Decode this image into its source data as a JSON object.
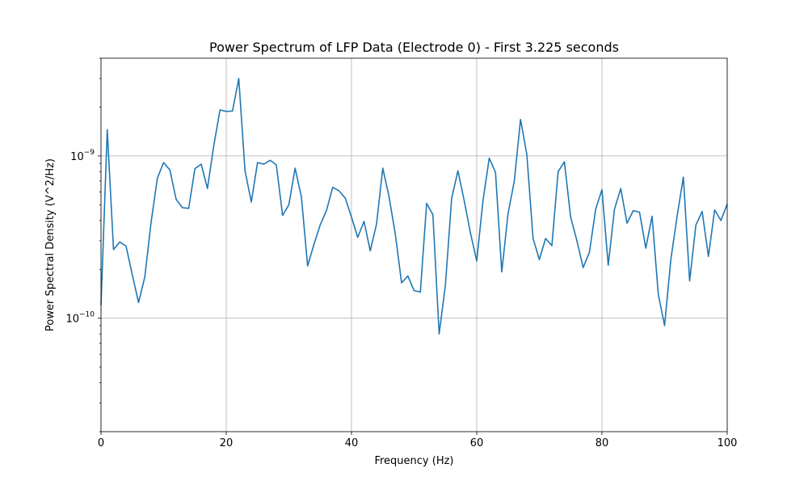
{
  "chart_data": {
    "type": "line",
    "title": "Power Spectrum of LFP Data (Electrode 0) - First 3.225 seconds",
    "xlabel": "Frequency (Hz)",
    "ylabel": "Power Spectral Density (V^2/Hz)",
    "xlim": [
      0,
      100
    ],
    "ylim": [
      2e-11,
      4e-09
    ],
    "yscale": "log",
    "grid": true,
    "x_ticks": [
      {
        "value": 0,
        "label": "0"
      },
      {
        "value": 20,
        "label": "20"
      },
      {
        "value": 40,
        "label": "40"
      },
      {
        "value": 60,
        "label": "60"
      },
      {
        "value": 80,
        "label": "80"
      },
      {
        "value": 100,
        "label": "100"
      }
    ],
    "y_ticks": [
      {
        "value": 1e-10,
        "base": "10",
        "exp": "−10"
      },
      {
        "value": 1e-09,
        "base": "10",
        "exp": "−9"
      }
    ],
    "series": [
      {
        "color": "#1f77b4",
        "x": [
          0,
          1,
          2,
          3,
          4,
          5,
          6,
          7,
          8,
          9,
          10,
          11,
          12,
          13,
          14,
          15,
          16,
          17,
          18,
          19,
          20,
          21,
          22,
          23,
          24,
          25,
          26,
          27,
          28,
          29,
          30,
          31,
          32,
          33,
          34,
          35,
          36,
          37,
          38,
          39,
          40,
          41,
          42,
          43,
          44,
          45,
          46,
          47,
          48,
          49,
          50,
          51,
          52,
          53,
          54,
          55,
          56,
          57,
          58,
          59,
          60,
          61,
          62,
          63,
          64,
          65,
          66,
          67,
          68,
          69,
          70,
          71,
          72,
          73,
          74,
          75,
          76,
          77,
          78,
          79,
          80,
          81,
          82,
          83,
          84,
          85,
          86,
          87,
          88,
          89,
          90,
          91,
          92,
          93,
          94,
          95,
          96,
          97,
          98,
          99,
          100
        ],
        "y": [
          1.2e-10,
          1.45e-09,
          2.65e-10,
          2.95e-10,
          2.78e-10,
          1.85e-10,
          1.25e-10,
          1.8e-10,
          3.9e-10,
          7.3e-10,
          9.1e-10,
          8.2e-10,
          5.4e-10,
          4.8e-10,
          4.75e-10,
          8.35e-10,
          8.9e-10,
          6.3e-10,
          1.15e-09,
          1.92e-09,
          1.88e-09,
          1.89e-09,
          3e-09,
          8.1e-10,
          5.2e-10,
          9.1e-10,
          8.9e-10,
          9.4e-10,
          8.8e-10,
          4.3e-10,
          5e-10,
          8.4e-10,
          5.6e-10,
          2.1e-10,
          2.85e-10,
          3.75e-10,
          4.6e-10,
          6.4e-10,
          6.1e-10,
          5.5e-10,
          4.2e-10,
          3.15e-10,
          3.95e-10,
          2.6e-10,
          3.8e-10,
          8.4e-10,
          5.6e-10,
          3.3e-10,
          1.65e-10,
          1.82e-10,
          1.48e-10,
          1.45e-10,
          5.1e-10,
          4.35e-10,
          8e-11,
          1.6e-10,
          5.5e-10,
          8.1e-10,
          5.3e-10,
          3.35e-10,
          2.25e-10,
          5.3e-10,
          9.7e-10,
          7.9e-10,
          1.93e-10,
          4.4e-10,
          7e-10,
          1.68e-09,
          1.02e-09,
          3.1e-10,
          2.3e-10,
          3.1e-10,
          2.8e-10,
          8e-10,
          9.2e-10,
          4.2e-10,
          3e-10,
          2.05e-10,
          2.55e-10,
          4.7e-10,
          6.2e-10,
          2.12e-10,
          4.7e-10,
          6.3e-10,
          3.85e-10,
          4.6e-10,
          4.5e-10,
          2.7e-10,
          4.25e-10,
          1.4e-10,
          9e-11,
          2.3e-10,
          4.25e-10,
          7.4e-10,
          1.7e-10,
          3.75e-10,
          4.55e-10,
          2.4e-10,
          4.65e-10,
          4e-10,
          5.05e-10
        ]
      }
    ]
  }
}
